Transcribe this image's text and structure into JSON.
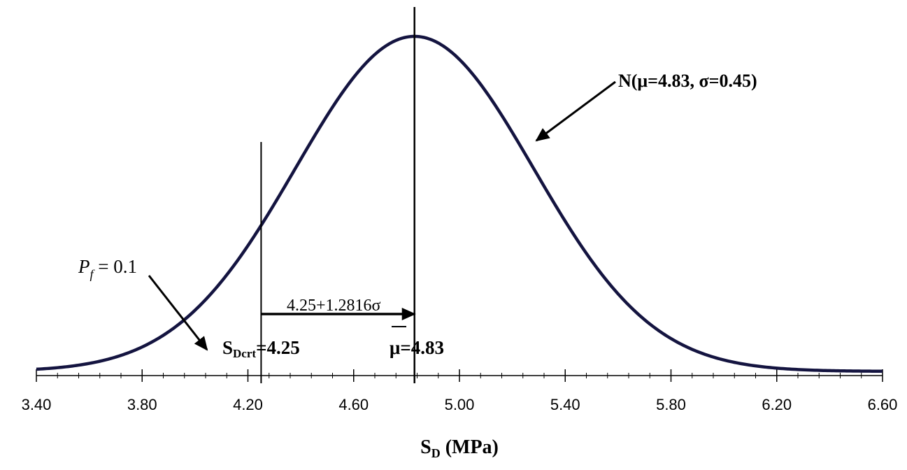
{
  "chart_data": {
    "type": "line",
    "title": "",
    "xlabel": {
      "main": "S",
      "sub": "D",
      "unit": " (MPa)"
    },
    "ylabel": "",
    "xlim": [
      3.4,
      6.6
    ],
    "xticks": [
      "3.40",
      "3.80",
      "4.20",
      "4.60",
      "5.00",
      "5.40",
      "5.80",
      "6.20",
      "6.60"
    ],
    "minor_tick_step": 0.08,
    "grid": false,
    "legend": "none",
    "series": [
      {
        "distribution": "normal",
        "mean": 4.83,
        "sd": 0.45,
        "color": "#141440"
      }
    ],
    "vertical_lines": [
      {
        "x": 4.25
      },
      {
        "x": 4.83
      }
    ],
    "annotations": {
      "dist_label": "N(μ=4.83, σ=0.45)",
      "pf_label": {
        "italic_p": "P",
        "sub": "f",
        "rest": " = 0.1"
      },
      "arrow_label": "4.25+1.2816σ",
      "scrit_label": {
        "main": "S",
        "sub": "Dcrt",
        "rest": "=4.25"
      },
      "mean_label": {
        "mu": "μ",
        "rest": "=4.83"
      }
    }
  }
}
